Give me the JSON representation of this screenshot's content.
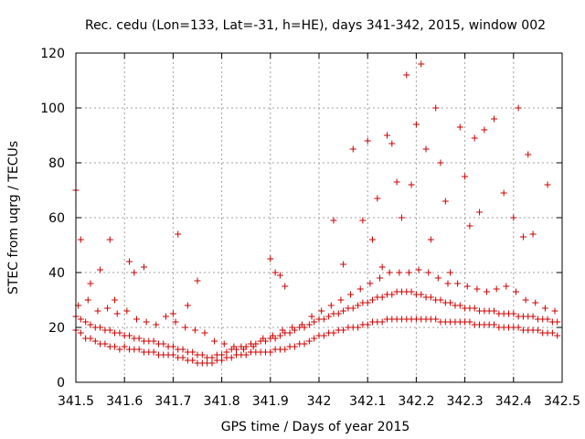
{
  "chart_data": {
    "type": "scatter",
    "title": "Rec. cedu (Lon=133, Lat=-31, h=HE), days 341-342, 2015, window 002",
    "xlabel": "GPS time / Days of year 2015",
    "ylabel": "STEC from uqrg / TECUs",
    "xlim": [
      341.5,
      342.5
    ],
    "ylim": [
      0,
      120
    ],
    "xticks": [
      "341.5",
      "341.6",
      "341.7",
      "341.8",
      "341.9",
      "342",
      "342.1",
      "342.2",
      "342.3",
      "342.4",
      "342.5"
    ],
    "yticks": [
      "0",
      "20",
      "40",
      "60",
      "80",
      "100",
      "120"
    ],
    "grid": true,
    "marker": "plus",
    "color": "#cc0000",
    "series": [
      {
        "name": "",
        "x": [
          341.5,
          341.51,
          341.52,
          341.53,
          341.54,
          341.55,
          341.56,
          341.57,
          341.58,
          341.59,
          341.6,
          341.61,
          341.62,
          341.63,
          341.64,
          341.65,
          341.66,
          341.67,
          341.68,
          341.69,
          341.7,
          341.71,
          341.72,
          341.73,
          341.74,
          341.75,
          341.76,
          341.77,
          341.78,
          341.79,
          341.8,
          341.81,
          341.82,
          341.83,
          341.84,
          341.85,
          341.86,
          341.87,
          341.88,
          341.89,
          341.9,
          341.91,
          341.92,
          341.93,
          341.94,
          341.95,
          341.96,
          341.97,
          341.98,
          341.99,
          342.0,
          342.01,
          342.02,
          342.03,
          342.04,
          342.05,
          342.06,
          342.07,
          342.08,
          342.09,
          342.1,
          342.11,
          342.12,
          342.13,
          342.14,
          342.15,
          342.16,
          342.17,
          342.18,
          342.19,
          342.2,
          342.21,
          342.22,
          342.23,
          342.24,
          342.25,
          342.26,
          342.27,
          342.28,
          342.29,
          342.3,
          342.31,
          342.32,
          342.33,
          342.34,
          342.35,
          342.36,
          342.37,
          342.38,
          342.39,
          342.4,
          342.41,
          342.42,
          342.43,
          342.44,
          342.45,
          342.46,
          342.47,
          342.48,
          342.49,
          341.5,
          341.51,
          341.52,
          341.53,
          341.54,
          341.55,
          341.56,
          341.57,
          341.58,
          341.59,
          341.6,
          341.61,
          341.62,
          341.63,
          341.64,
          341.65,
          341.66,
          341.67,
          341.68,
          341.69,
          341.7,
          341.71,
          341.72,
          341.73,
          341.74,
          341.75,
          341.76,
          341.77,
          341.78,
          341.79,
          341.8,
          341.81,
          341.82,
          341.83,
          341.84,
          341.85,
          341.86,
          341.87,
          341.88,
          341.89,
          341.9,
          341.91,
          341.92,
          341.93,
          341.94,
          341.95,
          341.96,
          341.97,
          341.98,
          341.99,
          342.0,
          342.01,
          342.02,
          342.03,
          342.04,
          342.05,
          342.06,
          342.07,
          342.08,
          342.09,
          342.1,
          342.11,
          342.12,
          342.13,
          342.14,
          342.15,
          342.16,
          342.17,
          342.18,
          342.19,
          342.2,
          342.21,
          342.22,
          342.23,
          342.24,
          342.25,
          342.26,
          342.27,
          342.28,
          342.29,
          342.3,
          342.31,
          342.32,
          342.33,
          342.34,
          342.35,
          342.36,
          342.37,
          342.38,
          342.39,
          342.4,
          342.41,
          342.42,
          342.43,
          342.44,
          342.45,
          342.46,
          342.47,
          342.48,
          342.49,
          341.505,
          341.525,
          341.545,
          341.565,
          341.585,
          341.605,
          341.625,
          341.645,
          341.665,
          341.685,
          341.705,
          341.725,
          341.745,
          341.765,
          341.785,
          341.805,
          341.825,
          341.845,
          341.865,
          341.885,
          341.905,
          341.925,
          341.945,
          341.965,
          341.985,
          342.005,
          342.025,
          342.045,
          342.065,
          342.085,
          342.105,
          342.125,
          342.145,
          342.165,
          342.185,
          342.205,
          342.225,
          342.245,
          342.265,
          342.285,
          342.305,
          342.325,
          342.345,
          342.365,
          342.385,
          342.405,
          342.425,
          342.445,
          342.465,
          342.485,
          341.5,
          341.51,
          341.53,
          341.55,
          341.57,
          341.58,
          341.61,
          341.62,
          341.64,
          341.7,
          341.71,
          341.73,
          341.75,
          341.9,
          341.91,
          341.92,
          341.93,
          342.03,
          342.05,
          342.07,
          342.09,
          342.1,
          342.11,
          342.12,
          342.13,
          342.14,
          342.15,
          342.16,
          342.17,
          342.18,
          342.19,
          342.2,
          342.21,
          342.22,
          342.23,
          342.24,
          342.25,
          342.26,
          342.27,
          342.29,
          342.3,
          342.31,
          342.32,
          342.33,
          342.34,
          342.36,
          342.38,
          342.4,
          342.41,
          342.42,
          342.43,
          342.44,
          342.47
        ],
        "y": [
          19,
          18,
          16,
          16,
          15,
          14,
          14,
          13,
          13,
          12,
          13,
          12,
          12,
          12,
          11,
          11,
          11,
          10,
          10,
          10,
          10,
          9,
          9,
          8,
          8,
          7,
          7,
          7,
          7,
          8,
          8,
          9,
          9,
          10,
          10,
          10,
          11,
          11,
          11,
          11,
          11,
          12,
          12,
          12,
          13,
          13,
          14,
          14,
          15,
          16,
          17,
          17,
          18,
          18,
          19,
          19,
          20,
          20,
          20,
          21,
          21,
          22,
          22,
          22,
          23,
          23,
          23,
          23,
          23,
          23,
          23,
          23,
          23,
          23,
          23,
          22,
          22,
          22,
          22,
          22,
          22,
          22,
          21,
          21,
          21,
          21,
          21,
          20,
          20,
          20,
          20,
          20,
          19,
          19,
          19,
          19,
          18,
          18,
          18,
          17,
          24,
          23,
          22,
          21,
          20,
          20,
          19,
          19,
          18,
          18,
          17,
          17,
          16,
          16,
          15,
          15,
          15,
          14,
          14,
          13,
          13,
          12,
          12,
          11,
          11,
          10,
          10,
          9,
          9,
          10,
          10,
          11,
          12,
          12,
          13,
          13,
          14,
          14,
          15,
          15,
          16,
          16,
          17,
          18,
          18,
          19,
          20,
          20,
          21,
          22,
          23,
          23,
          24,
          25,
          25,
          26,
          27,
          27,
          28,
          29,
          29,
          30,
          31,
          31,
          32,
          32,
          33,
          33,
          33,
          33,
          32,
          32,
          31,
          31,
          30,
          30,
          29,
          29,
          28,
          28,
          27,
          27,
          27,
          26,
          26,
          26,
          26,
          25,
          25,
          25,
          25,
          24,
          24,
          24,
          24,
          23,
          23,
          23,
          22,
          22,
          28,
          30,
          26,
          27,
          25,
          26,
          23,
          22,
          21,
          24,
          22,
          20,
          19,
          18,
          15,
          14,
          13,
          12,
          13,
          16,
          17,
          19,
          20,
          21,
          24,
          26,
          28,
          30,
          32,
          34,
          36,
          38,
          40,
          40,
          40,
          41,
          40,
          38,
          36,
          36,
          35,
          34,
          33,
          34,
          35,
          33,
          30,
          29,
          27,
          26,
          70,
          52,
          36,
          41,
          52,
          30,
          44,
          40,
          42,
          25,
          54,
          28,
          37,
          45,
          40,
          39,
          35,
          59,
          43,
          85,
          59,
          88,
          52,
          67,
          42,
          90,
          87,
          73,
          60,
          112,
          72,
          94,
          116,
          85,
          52,
          100,
          80,
          66,
          40,
          93,
          75,
          57,
          89,
          62,
          92,
          96,
          69,
          60,
          100,
          53,
          83,
          54,
          72
        ]
      }
    ]
  }
}
